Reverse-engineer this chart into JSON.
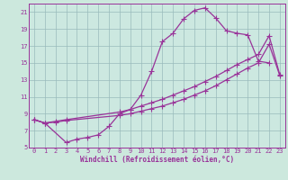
{
  "background_color": "#cce8dd",
  "plot_bg": "#cce8e0",
  "line_color": "#993399",
  "grid_color": "#99bbbb",
  "xlabel": "Windchill (Refroidissement éolien,°C)",
  "xlim": [
    -0.5,
    23.5
  ],
  "ylim": [
    5,
    22
  ],
  "yticks": [
    5,
    7,
    9,
    11,
    13,
    15,
    17,
    19,
    21
  ],
  "xticks": [
    0,
    1,
    2,
    3,
    4,
    5,
    6,
    7,
    8,
    9,
    10,
    11,
    12,
    13,
    14,
    15,
    16,
    17,
    18,
    19,
    20,
    21,
    22,
    23
  ],
  "curve1_x": [
    0,
    1,
    3,
    4,
    5,
    6,
    7,
    8,
    9,
    10,
    11,
    12,
    13,
    14,
    15,
    16,
    17,
    18,
    19,
    20,
    21,
    22
  ],
  "curve1_y": [
    8.3,
    7.9,
    5.6,
    6.0,
    6.2,
    6.5,
    7.5,
    9.0,
    9.5,
    11.2,
    14.0,
    17.5,
    18.5,
    20.2,
    21.2,
    21.5,
    20.3,
    18.8,
    18.5,
    18.3,
    15.2,
    15.0
  ],
  "curve2_x": [
    0,
    1,
    2,
    3,
    8,
    9,
    10,
    11,
    12,
    13,
    14,
    15,
    16,
    17,
    18,
    19,
    20,
    21,
    22,
    23
  ],
  "curve2_y": [
    8.3,
    7.9,
    8.1,
    8.3,
    9.2,
    9.5,
    9.9,
    10.3,
    10.7,
    11.2,
    11.7,
    12.2,
    12.8,
    13.4,
    14.1,
    14.8,
    15.4,
    16.0,
    18.2,
    13.6
  ],
  "curve3_x": [
    0,
    1,
    2,
    3,
    8,
    9,
    10,
    11,
    12,
    13,
    14,
    15,
    16,
    17,
    18,
    19,
    20,
    21,
    22,
    23
  ],
  "curve3_y": [
    8.3,
    7.9,
    8.0,
    8.2,
    8.8,
    9.0,
    9.3,
    9.6,
    9.9,
    10.3,
    10.7,
    11.2,
    11.7,
    12.3,
    13.0,
    13.7,
    14.4,
    15.0,
    17.2,
    13.5
  ],
  "markersize": 3,
  "linewidth": 0.9
}
